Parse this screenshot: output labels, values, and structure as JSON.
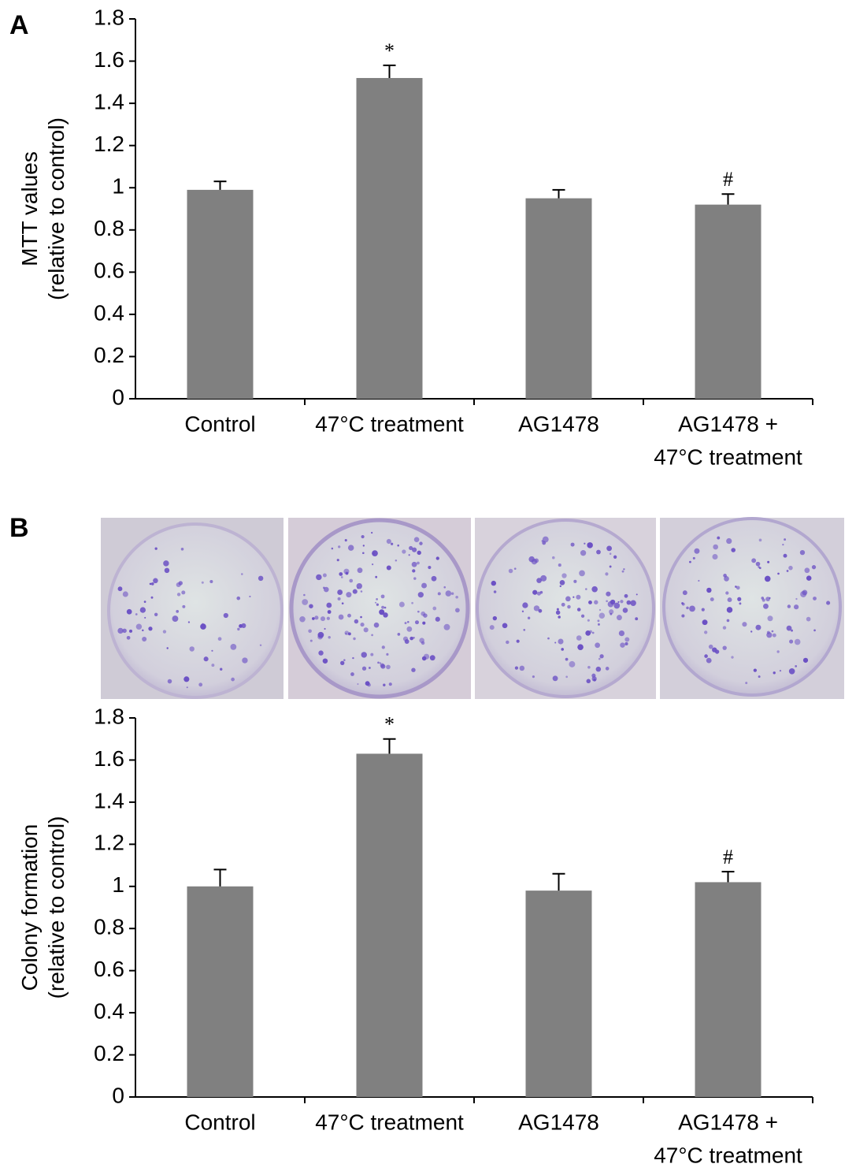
{
  "chart_data": [
    {
      "type": "bar",
      "panel_label": "A",
      "ylabel": [
        "MTT values",
        "(relative to control)"
      ],
      "categories": [
        [
          "Control"
        ],
        [
          "47°C treatment"
        ],
        [
          "AG1478"
        ],
        [
          "AG1478 +",
          "47°C treatment"
        ]
      ],
      "values": [
        0.99,
        1.52,
        0.95,
        0.92
      ],
      "errors": [
        0.04,
        0.06,
        0.04,
        0.05
      ],
      "annotations": [
        null,
        "*",
        null,
        "#"
      ],
      "color": "#808080",
      "ylim": [
        0,
        1.8
      ],
      "yticks": [
        0,
        0.2,
        0.4,
        0.6,
        0.8,
        1,
        1.2,
        1.4,
        1.6,
        1.8
      ]
    },
    {
      "type": "bar",
      "panel_label": "B",
      "ylabel": [
        "Colony formation",
        "(relative to control)"
      ],
      "categories": [
        [
          "Control"
        ],
        [
          "47°C treatment"
        ],
        [
          "AG1478"
        ],
        [
          "AG1478 +",
          "47°C treatment"
        ]
      ],
      "values": [
        1.0,
        1.63,
        0.98,
        1.02
      ],
      "errors": [
        0.08,
        0.07,
        0.08,
        0.05
      ],
      "annotations": [
        null,
        "*",
        null,
        "#"
      ],
      "color": "#808080",
      "ylim": [
        0,
        1.8
      ],
      "yticks": [
        0,
        0.2,
        0.4,
        0.6,
        0.8,
        1,
        1.2,
        1.4,
        1.6,
        1.8
      ]
    }
  ]
}
